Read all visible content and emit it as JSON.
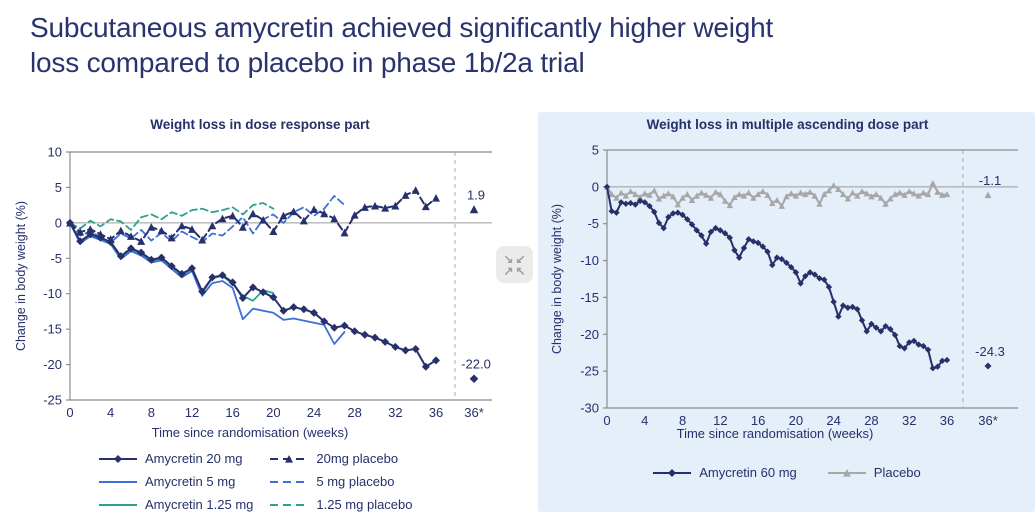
{
  "page": {
    "title_line1": "Subcutaneous amycretin achieved significantly higher weight",
    "title_line2": "loss compared to placebo in phase 1b/2a trial"
  },
  "colors": {
    "navy": "#26306B",
    "blue": "#3E6FD8",
    "teal": "#2FA08E",
    "grey": "#A7A7A7",
    "axis": "#8C8C8C",
    "zero_line": "#9B9B9B",
    "separator": "#A3AAB8",
    "panel_bg": "#E4EFF9",
    "title_text": "#28336F"
  },
  "collapse_button": {
    "arrows": [
      "↘",
      "↙",
      "↗",
      "↖"
    ]
  },
  "chart_data": [
    {
      "type": "line",
      "title": "Weight loss in dose response part",
      "xlabel": "Time since randomisation (weeks)",
      "ylabel": "Change in body weight (%)",
      "xlim": [
        0,
        36
      ],
      "ylim": [
        -25,
        10
      ],
      "yticks": [
        10,
        5,
        0,
        -5,
        -10,
        -15,
        -20,
        -25
      ],
      "xticks": [
        0,
        4,
        8,
        12,
        16,
        20,
        24,
        28,
        32,
        36
      ],
      "extra_xtick_label": "36*",
      "grid": false,
      "legend_columns": [
        [
          0,
          1,
          2
        ],
        [
          3,
          4,
          5
        ]
      ],
      "series": [
        {
          "name": "Amycretin 20 mg",
          "color": "navy",
          "style": "solid",
          "marker": "diamond",
          "x_start": 0,
          "x_step": 1,
          "y": [
            0,
            -2.6,
            -1.6,
            -2.1,
            -2.7,
            -4.7,
            -3.6,
            -4.2,
            -5.2,
            -4.9,
            -6.1,
            -7.2,
            -6.4,
            -9.7,
            -7.7,
            -7.4,
            -8.4,
            -10.6,
            -9.1,
            -9.8,
            -10.5,
            -12.4,
            -11.9,
            -12.2,
            -12.7,
            -13.9,
            -14.8,
            -14.5,
            -15.3,
            -15.8,
            -16.2,
            -16.8,
            -17.5,
            -18.0,
            -17.8,
            -20.3,
            -19.4
          ],
          "final": {
            "label": "-22.0",
            "value": -22.0
          }
        },
        {
          "name": "Amycretin 5 mg",
          "color": "blue",
          "style": "solid",
          "marker": "none",
          "x_start": 0,
          "x_step": 1,
          "y": [
            0,
            -2.9,
            -1.9,
            -2.4,
            -3.0,
            -5.1,
            -4.0,
            -4.6,
            -5.6,
            -5.3,
            -6.5,
            -7.7,
            -6.8,
            -10.3,
            -8.5,
            -8.2,
            -9.2,
            -13.6,
            -12.1,
            -12.4,
            -12.7,
            -13.7,
            -13.5,
            -13.8,
            -14.1,
            -14.4,
            -17.1,
            -15.4
          ],
          "final": null
        },
        {
          "name": "Amycretin 1.25 mg",
          "color": "teal",
          "style": "solid",
          "marker": "none",
          "x_start": 0,
          "x_step": 1,
          "y": [
            0,
            -2.8,
            -1.7,
            -2.2,
            -2.8,
            -4.9,
            -3.8,
            -4.4,
            -5.4,
            -5.1,
            -6.2,
            -7.4,
            -6.5,
            -9.9,
            -7.8,
            -7.5,
            -8.6,
            -10.3,
            -11.0,
            -9.5,
            -9.9
          ],
          "final": null
        },
        {
          "name": "20mg placebo",
          "color": "navy",
          "style": "dashed",
          "marker": "triangle",
          "x_start": 0,
          "x_step": 1,
          "y": [
            0,
            -1.3,
            -0.9,
            -1.6,
            -2.3,
            -1.1,
            -1.9,
            -2.6,
            -0.6,
            -1.1,
            -2.1,
            -0.4,
            -0.9,
            -2.4,
            -0.4,
            0.6,
            1.0,
            -0.6,
            1.3,
            0.4,
            -1.2,
            1.0,
            1.6,
            0.3,
            1.9,
            1.3,
            0.6,
            -1.4,
            1.1,
            2.2,
            2.4,
            2.1,
            2.4,
            3.9,
            4.6,
            2.3,
            3.5
          ],
          "final": {
            "label": "1.9",
            "value": 1.9
          }
        },
        {
          "name": "5 mg placebo",
          "color": "blue",
          "style": "dashed",
          "marker": "none",
          "x_start": 0,
          "x_step": 1,
          "y": [
            0,
            -1.8,
            -1.2,
            -2.0,
            -2.8,
            -1.5,
            -2.2,
            -1.0,
            -2.5,
            -1.4,
            -2.6,
            -1.2,
            -2.0,
            -2.7,
            -1.5,
            -1.8,
            -0.5,
            0.8,
            -1.5,
            0.5,
            1.2,
            0.0,
            1.5,
            2.2,
            1.0,
            2.0,
            3.8,
            2.5
          ],
          "final": null
        },
        {
          "name": "1.25 mg placebo",
          "color": "teal",
          "style": "dashed",
          "marker": "none",
          "x_start": 0,
          "x_step": 1,
          "y": [
            0,
            -0.8,
            0.3,
            -0.5,
            0.5,
            0.2,
            -1.0,
            0.8,
            1.2,
            0.5,
            1.5,
            1.0,
            1.8,
            2.0,
            1.5,
            1.8,
            2.2,
            1.2,
            2.5,
            2.8,
            2.0
          ],
          "final": null
        }
      ]
    },
    {
      "type": "line",
      "title": "Weight loss in multiple ascending dose part",
      "xlabel": "Time since randomisation (weeks)",
      "ylabel": "Change in body weight (%)",
      "xlim": [
        0,
        36
      ],
      "ylim": [
        -30,
        5
      ],
      "yticks": [
        5,
        0,
        -5,
        -10,
        -15,
        -20,
        -25,
        -30
      ],
      "xticks": [
        0,
        4,
        8,
        12,
        16,
        20,
        24,
        28,
        32,
        36
      ],
      "extra_xtick_label": "36*",
      "grid": false,
      "legend_columns": [
        [
          0
        ],
        [
          1
        ]
      ],
      "series": [
        {
          "name": "Amycretin 60 mg",
          "color": "navy",
          "style": "solid",
          "marker": "diamond",
          "x_start": 0,
          "x_step": 0.5,
          "y": [
            0,
            -3.3,
            -3.5,
            -2.1,
            -2.3,
            -2.2,
            -2.4,
            -1.9,
            -2.1,
            -2.6,
            -3.4,
            -4.9,
            -5.6,
            -4.1,
            -3.6,
            -3.5,
            -3.8,
            -4.4,
            -5.1,
            -5.9,
            -6.6,
            -7.7,
            -6.1,
            -5.6,
            -5.9,
            -6.3,
            -6.9,
            -8.6,
            -9.6,
            -8.3,
            -7.1,
            -7.4,
            -7.6,
            -8.1,
            -8.8,
            -10.6,
            -9.6,
            -9.8,
            -10.3,
            -10.9,
            -11.6,
            -13.1,
            -12.1,
            -11.6,
            -11.9,
            -12.4,
            -12.6,
            -13.6,
            -15.6,
            -17.6,
            -16.1,
            -16.4,
            -16.3,
            -16.6,
            -18.1,
            -19.6,
            -18.6,
            -19.1,
            -19.6,
            -18.9,
            -19.3,
            -20.1,
            -21.6,
            -21.9,
            -21.1,
            -20.9,
            -21.4,
            -21.6,
            -22.1,
            -24.6,
            -24.4,
            -23.6,
            -23.5
          ],
          "final": {
            "label": "-24.3",
            "value": -24.3
          }
        },
        {
          "name": "Placebo",
          "color": "grey",
          "style": "solid",
          "marker": "triangle",
          "x_start": 0,
          "x_step": 0.5,
          "y": [
            0,
            -1.0,
            -1.5,
            -0.8,
            -1.2,
            -0.6,
            -1.0,
            -1.4,
            -0.9,
            -1.1,
            -0.5,
            -1.6,
            -1.2,
            -0.9,
            -1.3,
            -2.4,
            -1.5,
            -1.0,
            -1.8,
            -1.2,
            -0.8,
            -1.1,
            -1.5,
            -0.7,
            -1.0,
            -1.9,
            -2.5,
            -1.4,
            -1.0,
            -1.2,
            -0.8,
            -1.5,
            -1.0,
            -0.6,
            -1.1,
            -2.2,
            -1.8,
            -2.6,
            -1.3,
            -0.9,
            -1.2,
            -0.8,
            -1.0,
            -0.7,
            -1.2,
            -2.3,
            -1.0,
            -0.5,
            0.2,
            -0.3,
            -1.0,
            -1.6,
            -0.8,
            -1.2,
            -0.6,
            -0.9,
            -1.3,
            -1.0,
            -1.5,
            -2.3,
            -1.6,
            -1.0,
            -0.8,
            -1.1,
            -0.6,
            -0.9,
            -1.2,
            -0.8,
            -1.0,
            0.5,
            -0.7,
            -1.1,
            -1.0
          ],
          "final": {
            "label": "-1.1",
            "value": -1.1
          }
        }
      ]
    }
  ]
}
